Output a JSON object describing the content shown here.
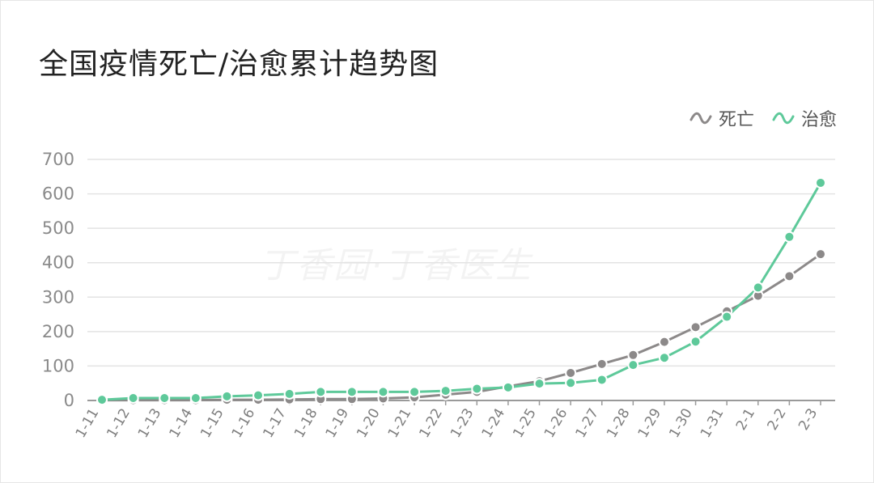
{
  "chart_data": {
    "type": "line",
    "title": "全国疫情死亡/治愈累计趋势图",
    "xlabel": "",
    "ylabel": "",
    "ylim": [
      0,
      700
    ],
    "yticks": [
      "0",
      "100",
      "200",
      "300",
      "400",
      "500",
      "600",
      "700"
    ],
    "grid": true,
    "legend": "top-right",
    "categories": [
      "1-11",
      "1-12",
      "1-13",
      "1-14",
      "1-15",
      "1-16",
      "1-17",
      "1-18",
      "1-19",
      "1-20",
      "1-21",
      "1-22",
      "1-23",
      "1-24",
      "1-25",
      "1-26",
      "1-27",
      "1-28",
      "1-29",
      "1-30",
      "1-31",
      "2-1",
      "2-2",
      "2-3"
    ],
    "series": [
      {
        "name": "死亡",
        "color": "#8c8989",
        "values": [
          1,
          1,
          1,
          1,
          2,
          2,
          3,
          4,
          4,
          6,
          9,
          17,
          25,
          41,
          56,
          80,
          106,
          132,
          170,
          213,
          259,
          304,
          361,
          425
        ]
      },
      {
        "name": "治愈",
        "color": "#5ec99a",
        "values": [
          2,
          7,
          7,
          7,
          12,
          15,
          19,
          25,
          25,
          25,
          25,
          28,
          34,
          38,
          49,
          51,
          60,
          103,
          124,
          171,
          243,
          328,
          475,
          632
        ]
      }
    ]
  },
  "watermark": "丁香园·丁香医生"
}
